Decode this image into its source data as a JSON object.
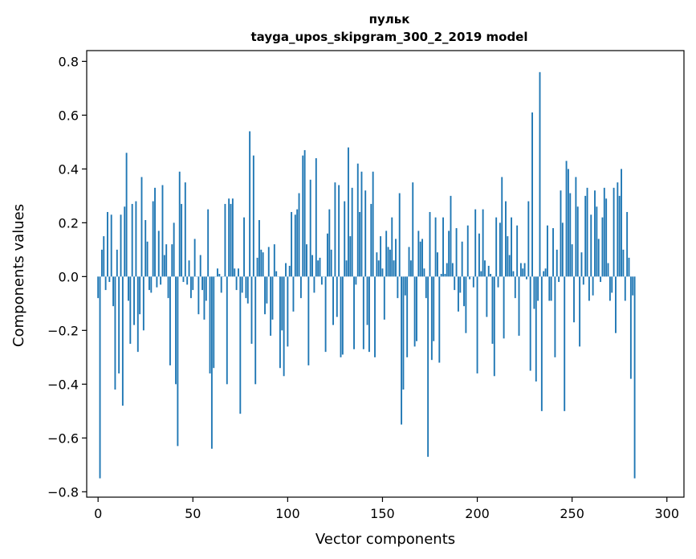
{
  "chart_data": {
    "type": "bar",
    "title": "пульк",
    "subtitle": "tayga_upos_skipgram_300_2_2019 model",
    "xlabel": "Vector components",
    "ylabel": "Components values",
    "xlim": [
      -6,
      309
    ],
    "ylim": [
      -0.82,
      0.84
    ],
    "xticks": [
      0,
      50,
      100,
      150,
      200,
      250,
      300
    ],
    "xtick_labels": [
      "0",
      "50",
      "100",
      "150",
      "200",
      "250",
      "300"
    ],
    "yticks": [
      -0.8,
      -0.6,
      -0.4,
      -0.2,
      0.0,
      0.2,
      0.4,
      0.6,
      0.8
    ],
    "ytick_labels": [
      "−0.8",
      "−0.6",
      "−0.4",
      "−0.2",
      "0.0",
      "0.2",
      "0.4",
      "0.6",
      "0.8"
    ],
    "bar_color": "#1f77b4",
    "values": [
      -0.08,
      -0.75,
      0.1,
      0.15,
      -0.05,
      0.24,
      -0.02,
      0.23,
      -0.11,
      -0.42,
      0.1,
      -0.36,
      0.23,
      -0.48,
      0.26,
      0.46,
      -0.09,
      -0.25,
      0.27,
      -0.18,
      0.28,
      -0.28,
      -0.14,
      0.37,
      -0.2,
      0.21,
      0.13,
      -0.05,
      -0.06,
      0.28,
      0.33,
      -0.04,
      0.17,
      -0.03,
      0.34,
      0.08,
      0.12,
      -0.08,
      -0.33,
      0.12,
      0.2,
      -0.4,
      -0.63,
      0.39,
      0.27,
      -0.02,
      0.35,
      -0.03,
      0.06,
      -0.08,
      -0.05,
      0.14,
      0.0,
      -0.14,
      0.08,
      -0.05,
      -0.16,
      -0.09,
      0.25,
      -0.36,
      -0.64,
      -0.34,
      0.0,
      0.03,
      0.01,
      -0.06,
      0.0,
      0.27,
      -0.4,
      0.29,
      0.27,
      0.29,
      0.03,
      -0.05,
      0.03,
      -0.51,
      -0.06,
      0.22,
      -0.08,
      -0.1,
      0.54,
      -0.25,
      0.45,
      -0.4,
      0.07,
      0.21,
      0.1,
      0.09,
      -0.14,
      -0.1,
      0.11,
      -0.22,
      -0.16,
      0.12,
      0.02,
      0.0,
      -0.34,
      -0.2,
      -0.37,
      0.05,
      -0.26,
      0.04,
      0.24,
      -0.13,
      0.23,
      0.25,
      0.31,
      -0.08,
      0.45,
      0.47,
      0.12,
      -0.33,
      0.36,
      0.08,
      -0.06,
      0.44,
      0.06,
      0.07,
      -0.03,
      0.0,
      -0.28,
      0.16,
      0.25,
      0.1,
      -0.18,
      0.35,
      -0.15,
      0.34,
      -0.3,
      -0.29,
      0.28,
      0.06,
      0.48,
      0.15,
      0.33,
      -0.27,
      -0.03,
      0.42,
      0.24,
      0.39,
      -0.27,
      0.32,
      -0.18,
      -0.28,
      0.27,
      0.39,
      -0.3,
      0.09,
      0.06,
      0.15,
      0.03,
      -0.16,
      0.17,
      0.11,
      0.1,
      0.22,
      0.06,
      0.14,
      -0.08,
      0.31,
      -0.55,
      -0.42,
      -0.07,
      -0.3,
      0.11,
      0.06,
      0.35,
      -0.26,
      -0.24,
      0.17,
      0.13,
      0.14,
      0.03,
      -0.08,
      -0.67,
      0.24,
      -0.31,
      -0.24,
      0.22,
      0.09,
      -0.32,
      0.01,
      0.22,
      0.01,
      0.05,
      0.17,
      0.3,
      0.05,
      -0.05,
      0.18,
      -0.13,
      -0.06,
      0.13,
      -0.11,
      -0.21,
      0.19,
      -0.01,
      0.0,
      -0.04,
      0.25,
      -0.36,
      0.16,
      0.02,
      0.25,
      0.06,
      -0.15,
      0.04,
      0.01,
      -0.25,
      -0.37,
      0.22,
      -0.04,
      0.2,
      0.37,
      -0.23,
      0.28,
      0.15,
      0.08,
      0.22,
      0.02,
      -0.08,
      0.19,
      -0.22,
      0.05,
      0.03,
      0.05,
      -0.01,
      0.28,
      -0.35,
      0.61,
      -0.12,
      -0.39,
      -0.09,
      0.76,
      -0.5,
      0.02,
      0.03,
      0.19,
      -0.09,
      -0.09,
      0.18,
      -0.3,
      0.1,
      -0.02,
      0.32,
      0.2,
      -0.5,
      0.43,
      0.4,
      0.31,
      0.12,
      -0.17,
      0.37,
      0.26,
      -0.26,
      0.09,
      -0.03,
      0.3,
      0.33,
      -0.09,
      0.23,
      -0.07,
      0.32,
      0.26,
      0.14,
      -0.02,
      0.22,
      0.33,
      0.29,
      0.05,
      -0.09,
      -0.06,
      0.33,
      -0.21,
      0.35,
      0.3,
      0.4,
      0.1,
      -0.09,
      0.24,
      0.07,
      -0.38,
      -0.07,
      -0.75
    ]
  }
}
